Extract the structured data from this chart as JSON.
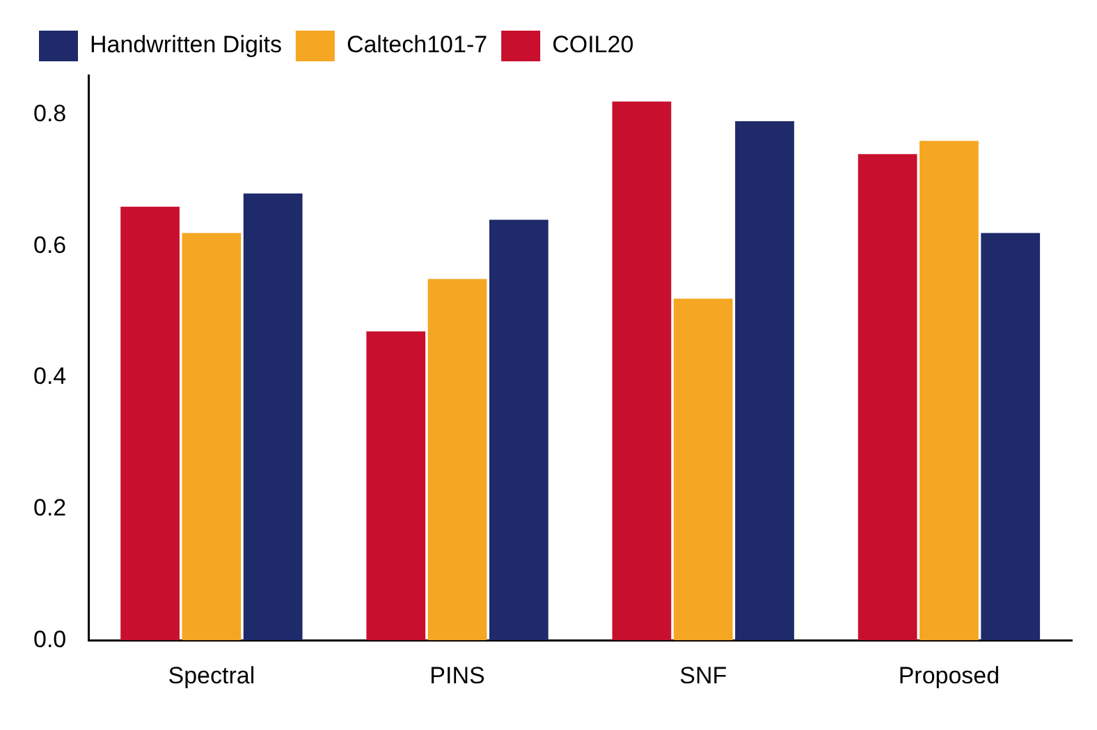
{
  "chart_data": {
    "type": "bar",
    "categories": [
      "Spectral",
      "PINS",
      "SNF",
      "Proposed"
    ],
    "series": [
      {
        "name": "COIL20",
        "color": "#c8102e",
        "values": [
          0.66,
          0.47,
          0.82,
          0.74
        ]
      },
      {
        "name": "Caltech101-7",
        "color": "#f5a623",
        "values": [
          0.62,
          0.55,
          0.52,
          0.76
        ]
      },
      {
        "name": "Handwritten Digits",
        "color": "#1f2a6b",
        "values": [
          0.68,
          0.64,
          0.79,
          0.62
        ]
      }
    ],
    "ylim": [
      0,
      0.86
    ],
    "yticks": [
      {
        "value": 0,
        "label": "0.0"
      },
      {
        "value": 0.2,
        "label": "0.2"
      },
      {
        "value": 0.4,
        "label": "0.4"
      },
      {
        "value": 0.6,
        "label": "0.6"
      },
      {
        "value": 0.8,
        "label": "0.8"
      }
    ],
    "grid": false,
    "legend": "top left"
  }
}
